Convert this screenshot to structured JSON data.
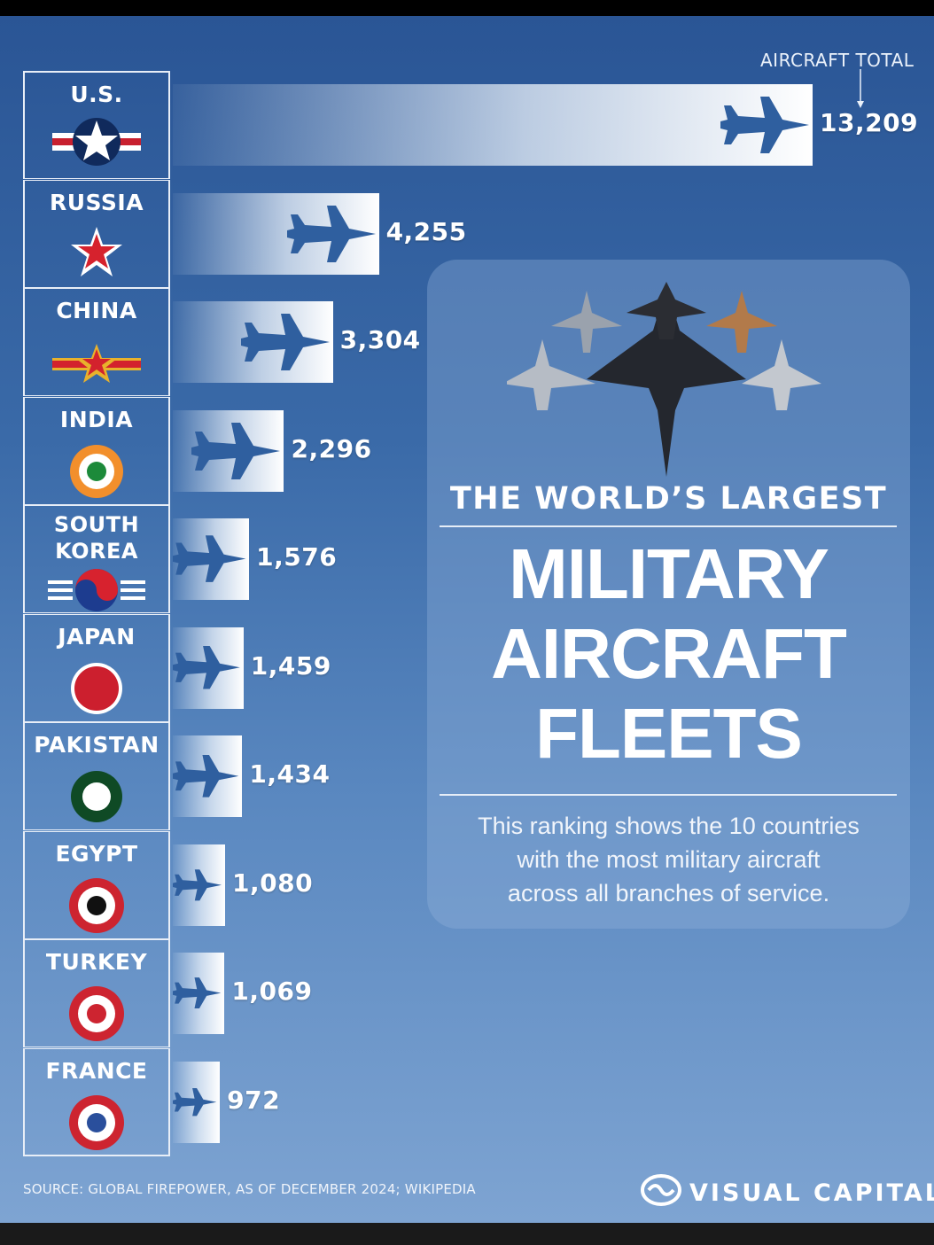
{
  "chart_data": {
    "type": "bar",
    "orientation": "horizontal",
    "categories": [
      "U.S.",
      "RUSSIA",
      "CHINA",
      "INDIA",
      "SOUTH KOREA",
      "JAPAN",
      "PAKISTAN",
      "EGYPT",
      "TURKEY",
      "FRANCE"
    ],
    "values": [
      13209,
      4255,
      3304,
      2296,
      1576,
      1459,
      1434,
      1080,
      1069,
      972
    ],
    "value_labels": [
      "13,209",
      "4,255",
      "3,304",
      "2,296",
      "1,576",
      "1,459",
      "1,434",
      "1,080",
      "1,069",
      "972"
    ],
    "value_header": "AIRCRAFT TOTAL",
    "xlim": [
      0,
      13209
    ]
  },
  "countries": [
    {
      "name": "U.S.",
      "emblem": "us-roundel-icon"
    },
    {
      "name": "RUSSIA",
      "emblem": "russia-star-icon"
    },
    {
      "name": "CHINA",
      "emblem": "china-roundel-icon"
    },
    {
      "name": "INDIA",
      "emblem": "india-roundel-icon"
    },
    {
      "name_lines": [
        "SOUTH",
        "KOREA"
      ],
      "emblem": "korea-taeguk-icon"
    },
    {
      "name": "JAPAN",
      "emblem": "japan-roundel-icon"
    },
    {
      "name": "PAKISTAN",
      "emblem": "pakistan-roundel-icon"
    },
    {
      "name": "EGYPT",
      "emblem": "egypt-roundel-icon"
    },
    {
      "name": "TURKEY",
      "emblem": "turkey-roundel-icon"
    },
    {
      "name": "FRANCE",
      "emblem": "france-roundel-icon"
    }
  ],
  "card": {
    "subtitle": "THE WORLD’S LARGEST",
    "title_lines": [
      "MILITARY",
      "AIRCRAFT",
      "FLEETS"
    ],
    "description_lines": [
      "This ranking shows the 10 countries",
      "with the most military aircraft",
      "across all branches of service."
    ]
  },
  "footer": {
    "source": "SOURCE: GLOBAL FIREPOWER, AS OF DECEMBER 2024; WIKIPEDIA",
    "brand": "VISUAL CAPITALIST"
  },
  "colors": {
    "bar_fill": "#ffffff",
    "jet_silhouette": "#2f5f9f",
    "text": "#ffffff"
  }
}
